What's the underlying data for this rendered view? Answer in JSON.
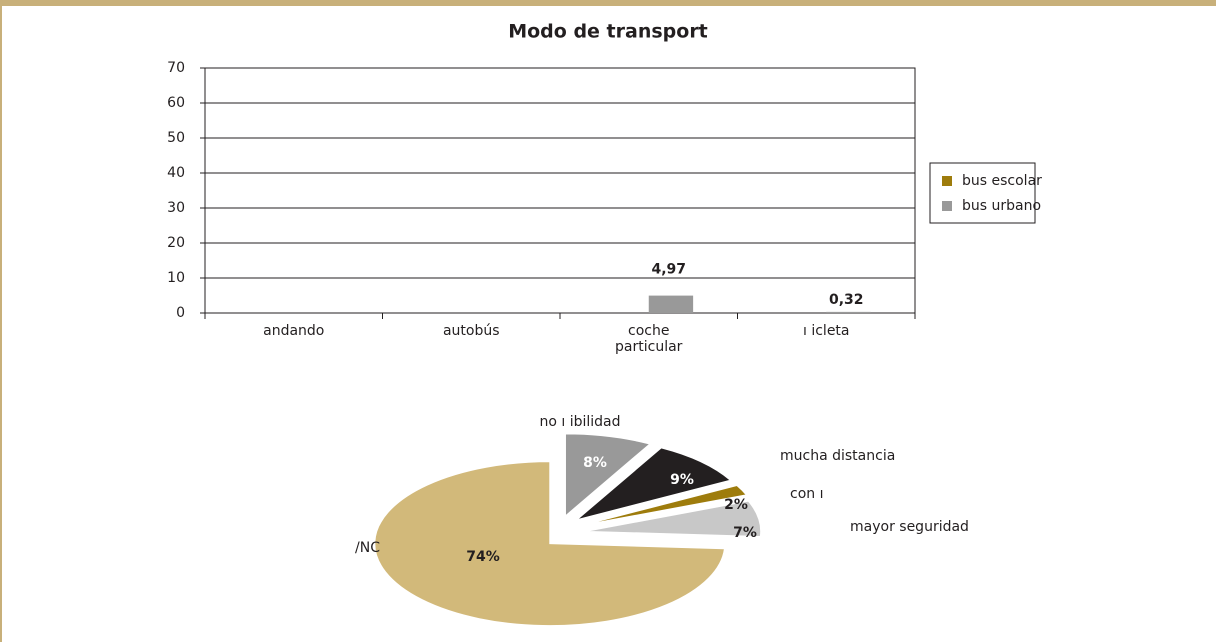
{
  "chart_data": [
    {
      "type": "bar",
      "title": "Modo de transport",
      "categories": [
        "andando",
        "autobús",
        "coche particular",
        "ı icleta"
      ],
      "series": [
        {
          "name": "bus escolar",
          "color": "#9e7c0c",
          "values": [
            null,
            null,
            null,
            null
          ]
        },
        {
          "name": "bus urbano",
          "color": "#999999",
          "values": [
            null,
            null,
            4.97,
            0.32
          ],
          "value_labels": [
            null,
            null,
            "4,97",
            "0,32"
          ]
        }
      ],
      "ylim": [
        0,
        70
      ],
      "yticks": [
        0,
        10,
        20,
        30,
        40,
        50,
        60,
        70
      ],
      "grid": true,
      "legend": "right"
    },
    {
      "type": "pie",
      "categories": [
        "no ı ibilidad",
        "mucha distancia",
        "con ı",
        "mayor seguridad",
        "/NC"
      ],
      "values": [
        8,
        9,
        2,
        7,
        74
      ],
      "value_labels": [
        "8%",
        "9%",
        "2%",
        "7%",
        "74%"
      ],
      "colors": [
        "#999999",
        "#231f20",
        "#9e7c0c",
        "#c8c8c8",
        "#d2b97a"
      ]
    }
  ]
}
